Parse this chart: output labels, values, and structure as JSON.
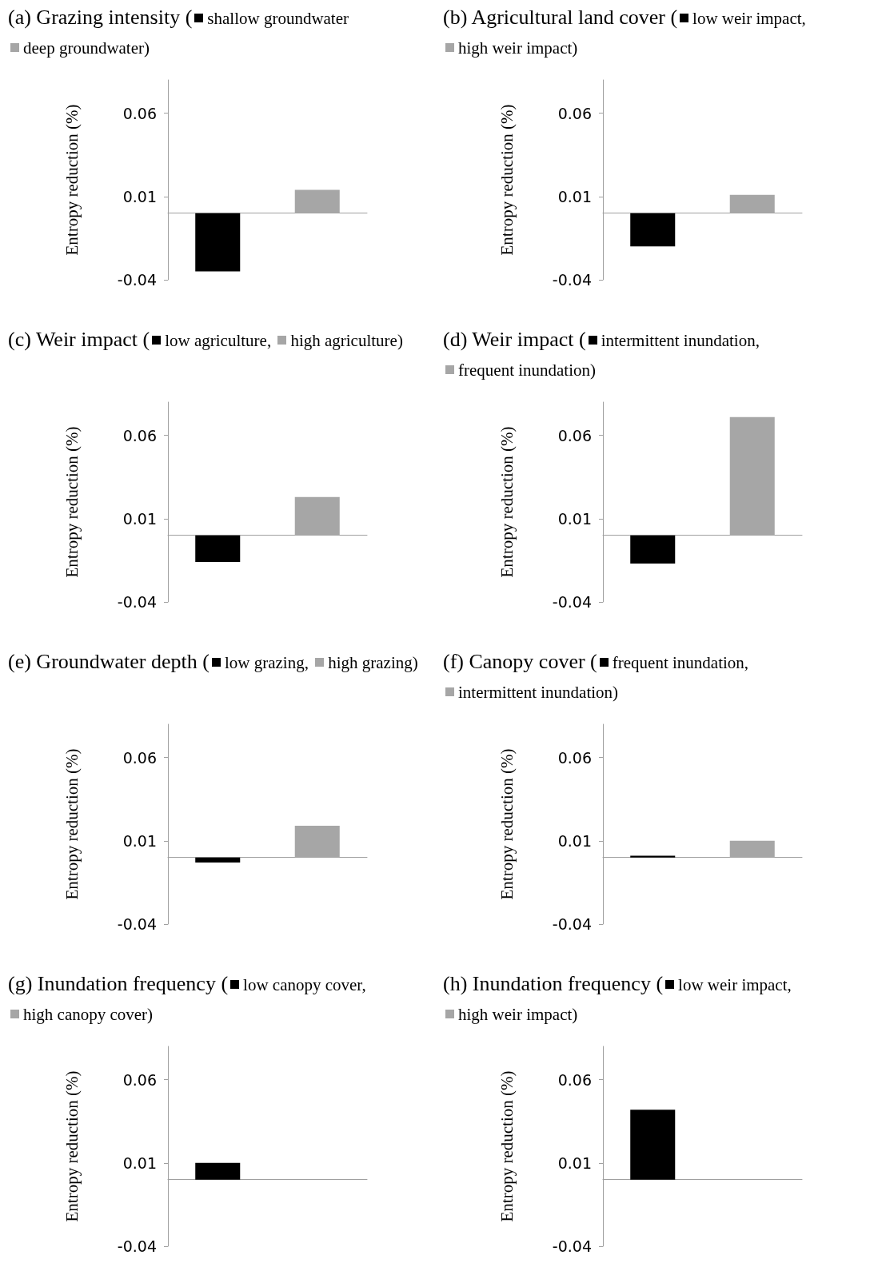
{
  "chart_data": [
    {
      "type": "bar",
      "title": "(a) Grazing intensity (",
      "ylabel": "Entropy reduction (%)",
      "categories": [
        null,
        null
      ],
      "ylim": [
        -0.04,
        0.08
      ],
      "yticks": [
        -0.04,
        0.01,
        0.06
      ],
      "legend": "top",
      "series": [
        {
          "name": "shallow groundwater",
          "color": "#000000",
          "values": [
            -0.035,
            null
          ]
        },
        {
          "name": "deep groundwater)",
          "color": "#a6a6a6",
          "values": [
            null,
            0.014
          ]
        }
      ]
    },
    {
      "type": "bar",
      "title": "(b) Agricultural land cover (",
      "ylabel": "Entropy reduction (%)",
      "categories": [
        null,
        null
      ],
      "ylim": [
        -0.04,
        0.08
      ],
      "yticks": [
        -0.04,
        0.01,
        0.06
      ],
      "legend": "top",
      "series": [
        {
          "name": "low weir impact,",
          "color": "#000000",
          "values": [
            -0.02,
            null
          ]
        },
        {
          "name": "high weir impact)",
          "color": "#a6a6a6",
          "values": [
            null,
            0.011
          ]
        }
      ]
    },
    {
      "type": "bar",
      "title": "(c) Weir impact (",
      "ylabel": "Entropy reduction (%)",
      "categories": [
        null,
        null
      ],
      "ylim": [
        -0.04,
        0.08
      ],
      "yticks": [
        -0.04,
        0.01,
        0.06
      ],
      "legend": "top",
      "series": [
        {
          "name": "low agriculture,",
          "color": "#000000",
          "values": [
            -0.016,
            null
          ]
        },
        {
          "name": "high agriculture)",
          "color": "#a6a6a6",
          "values": [
            null,
            0.023
          ]
        }
      ]
    },
    {
      "type": "bar",
      "title": "(d) Weir impact (",
      "ylabel": "Entropy reduction (%)",
      "categories": [
        null,
        null
      ],
      "ylim": [
        -0.04,
        0.08
      ],
      "yticks": [
        -0.04,
        0.01,
        0.06
      ],
      "legend": "top",
      "series": [
        {
          "name": "intermittent inundation,",
          "color": "#000000",
          "values": [
            -0.017,
            null
          ]
        },
        {
          "name": "frequent inundation)",
          "color": "#a6a6a6",
          "values": [
            null,
            0.071
          ]
        }
      ]
    },
    {
      "type": "bar",
      "title": "(e) Groundwater depth (",
      "ylabel": "Entropy reduction (%)",
      "categories": [
        null,
        null
      ],
      "ylim": [
        -0.04,
        0.08
      ],
      "yticks": [
        -0.04,
        0.01,
        0.06
      ],
      "legend": "top",
      "series": [
        {
          "name": "low grazing,",
          "color": "#000000",
          "values": [
            -0.003,
            null
          ]
        },
        {
          "name": "high grazing)",
          "color": "#a6a6a6",
          "values": [
            null,
            0.019
          ]
        }
      ]
    },
    {
      "type": "bar",
      "title": "(f) Canopy cover (",
      "ylabel": "Entropy reduction (%)",
      "categories": [
        null,
        null
      ],
      "ylim": [
        -0.04,
        0.08
      ],
      "yticks": [
        -0.04,
        0.01,
        0.06
      ],
      "legend": "top",
      "series": [
        {
          "name": "frequent inundation,",
          "color": "#000000",
          "values": [
            0.001,
            null
          ]
        },
        {
          "name": "intermittent inundation)",
          "color": "#a6a6a6",
          "values": [
            null,
            0.01
          ]
        }
      ]
    },
    {
      "type": "bar",
      "title": "(g) Inundation frequency (",
      "ylabel": "Entropy reduction (%)",
      "categories": [
        null,
        null
      ],
      "ylim": [
        -0.04,
        0.08
      ],
      "yticks": [
        -0.04,
        0.01,
        0.06
      ],
      "legend": "top",
      "series": [
        {
          "name": "low canopy cover,",
          "color": "#000000",
          "values": [
            0.01,
            null
          ]
        },
        {
          "name": "high canopy cover)",
          "color": "#a6a6a6",
          "values": [
            null,
            null
          ]
        }
      ]
    },
    {
      "type": "bar",
      "title": "(h) Inundation frequency (",
      "ylabel": "Entropy reduction (%)",
      "categories": [
        null,
        null
      ],
      "ylim": [
        -0.04,
        0.08
      ],
      "yticks": [
        -0.04,
        0.01,
        0.06
      ],
      "legend": "top",
      "series": [
        {
          "name": "low weir impact,",
          "color": "#000000",
          "values": [
            0.042,
            null
          ]
        },
        {
          "name": "high weir impact)",
          "color": "#a6a6a6",
          "values": [
            null,
            null
          ]
        }
      ]
    }
  ]
}
